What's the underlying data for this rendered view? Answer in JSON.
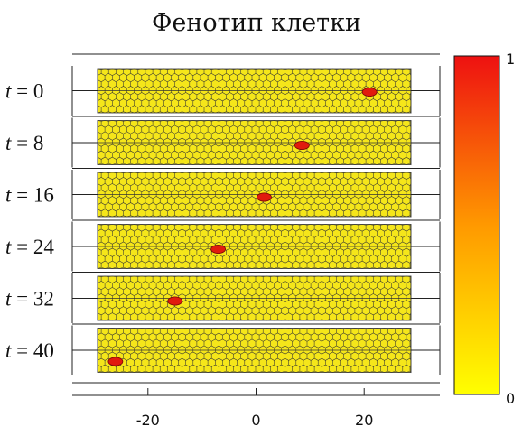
{
  "title": "Фенотип клетки",
  "rows": [
    {
      "label_var": "t",
      "label_rest": " = 0",
      "red_x": 21
    },
    {
      "label_var": "t",
      "label_rest": " = 8",
      "red_x": 8.5
    },
    {
      "label_var": "t",
      "label_rest": " = 16",
      "red_x": 1.5
    },
    {
      "label_var": "t",
      "label_rest": " = 24",
      "red_x": -7
    },
    {
      "label_var": "t",
      "label_rest": " = 32",
      "red_x": -15
    },
    {
      "label_var": "t",
      "label_rest": " = 40",
      "red_x": -26
    }
  ],
  "x_axis": {
    "ticks": [
      -20,
      0,
      20
    ],
    "tick_labels": [
      "-20",
      "0",
      "20"
    ],
    "range": [
      -34,
      34
    ]
  },
  "colorbar": {
    "max_label": "1",
    "min_label": "0",
    "range": [
      0,
      1
    ],
    "color_high": "#ee1111",
    "color_mid": "#ff9900",
    "color_low": "#ffff00"
  },
  "colors": {
    "cell_fill": "#f5e61a",
    "cell_stroke": "#333333",
    "highlight_cell": "#e11b0e"
  }
}
